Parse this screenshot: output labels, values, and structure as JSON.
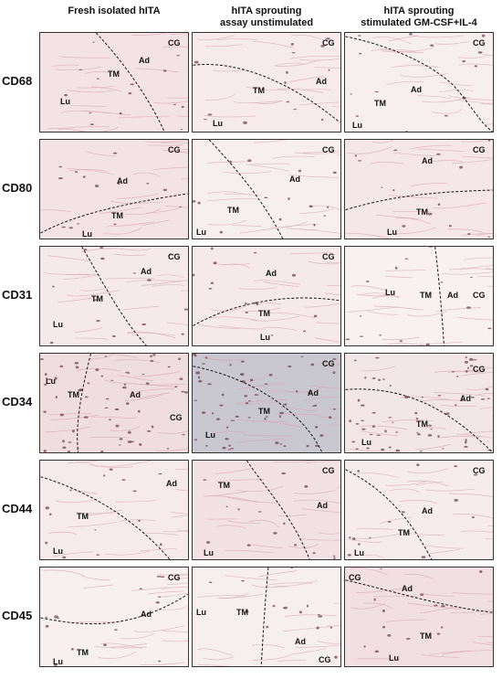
{
  "columns": [
    {
      "line1": "Fresh  isolated hITA",
      "line2": ""
    },
    {
      "line1": "hITA sprouting",
      "line2": "assay  unstimulated"
    },
    {
      "line1": "hITA sprouting",
      "line2": "stimulated GM-CSF+IL-4"
    }
  ],
  "rows": [
    {
      "marker": "CD68",
      "panels": [
        {
          "bg": "#f4e3e6",
          "labels": [
            {
              "t": "CG"
            },
            {
              "t": "Ad"
            },
            {
              "t": "TM"
            },
            {
              "t": "Lu"
            }
          ]
        },
        {
          "bg": "#f6eaec",
          "labels": [
            {
              "t": "CG"
            },
            {
              "t": "Ad"
            },
            {
              "t": "TM"
            },
            {
              "t": "Lu"
            }
          ]
        },
        {
          "bg": "#f7eef0",
          "labels": [
            {
              "t": "CG"
            },
            {
              "t": "Ad"
            },
            {
              "t": "TM"
            },
            {
              "t": "Lu"
            }
          ]
        }
      ]
    },
    {
      "marker": "CD80",
      "panels": [
        {
          "bg": "#f3e3e6",
          "labels": [
            {
              "t": "CG"
            },
            {
              "t": "Ad"
            },
            {
              "t": "TM"
            },
            {
              "t": "Lu"
            }
          ]
        },
        {
          "bg": "#f7eef0",
          "labels": [
            {
              "t": "CG"
            },
            {
              "t": "Ad"
            },
            {
              "t": "TM"
            },
            {
              "t": "Lu"
            }
          ]
        },
        {
          "bg": "#f5e6e9",
          "labels": [
            {
              "t": "CG"
            },
            {
              "t": "Ad"
            },
            {
              "t": "TM"
            },
            {
              "t": "Lu"
            }
          ]
        }
      ]
    },
    {
      "marker": "CD31",
      "panels": [
        {
          "bg": "#f5e9ec",
          "labels": [
            {
              "t": "CG"
            },
            {
              "t": "Ad"
            },
            {
              "t": "TM"
            },
            {
              "t": "Lu"
            }
          ]
        },
        {
          "bg": "#f6e9ec",
          "labels": [
            {
              "t": "CG"
            },
            {
              "t": "Ad"
            },
            {
              "t": "TM"
            },
            {
              "t": "Lu"
            }
          ]
        },
        {
          "bg": "#f8f0f1",
          "labels": [
            {
              "t": "Lu"
            },
            {
              "t": "TM"
            },
            {
              "t": "Ad"
            },
            {
              "t": "CG"
            }
          ]
        }
      ]
    },
    {
      "marker": "CD34",
      "panels": [
        {
          "bg": "#efdde0",
          "labels": [
            {
              "t": "Lu"
            },
            {
              "t": "TM"
            },
            {
              "t": "Ad"
            },
            {
              "t": "CG"
            }
          ]
        },
        {
          "bg": "#c9c7d0",
          "labels": [
            {
              "t": "CG"
            },
            {
              "t": "Ad"
            },
            {
              "t": "TM"
            },
            {
              "t": "Lu"
            }
          ]
        },
        {
          "bg": "#f2e6e8",
          "labels": [
            {
              "t": "CG"
            },
            {
              "t": "Ad"
            },
            {
              "t": "TM"
            },
            {
              "t": "Lu"
            }
          ]
        }
      ]
    },
    {
      "marker": "CD44",
      "panels": [
        {
          "bg": "#f6eaec",
          "labels": [
            {
              "t": "Ad"
            },
            {
              "t": "TM"
            },
            {
              "t": "Lu"
            }
          ]
        },
        {
          "bg": "#f2e2e5",
          "labels": [
            {
              "t": "CG"
            },
            {
              "t": "TM"
            },
            {
              "t": "Ad"
            },
            {
              "t": "Lu"
            }
          ]
        },
        {
          "bg": "#f6ecee",
          "labels": [
            {
              "t": "CG"
            },
            {
              "t": "Ad"
            },
            {
              "t": "TM"
            },
            {
              "t": "Lu"
            }
          ]
        }
      ]
    },
    {
      "marker": "CD45",
      "panels": [
        {
          "bg": "#f8eff1",
          "labels": [
            {
              "t": "CG"
            },
            {
              "t": "Ad"
            },
            {
              "t": "TM"
            },
            {
              "t": "Lu"
            }
          ]
        },
        {
          "bg": "#f7eef0",
          "labels": [
            {
              "t": "Lu"
            },
            {
              "t": "TM"
            },
            {
              "t": "Ad"
            },
            {
              "t": "CG"
            }
          ]
        },
        {
          "bg": "#f1dfe3",
          "labels": [
            {
              "t": "CG"
            },
            {
              "t": "Ad"
            },
            {
              "t": "TM"
            },
            {
              "t": "Lu"
            }
          ]
        }
      ]
    }
  ],
  "colors": {
    "tissue": "#d9a3b0",
    "stain": "#6b3a4a",
    "boundary": "#111111"
  }
}
